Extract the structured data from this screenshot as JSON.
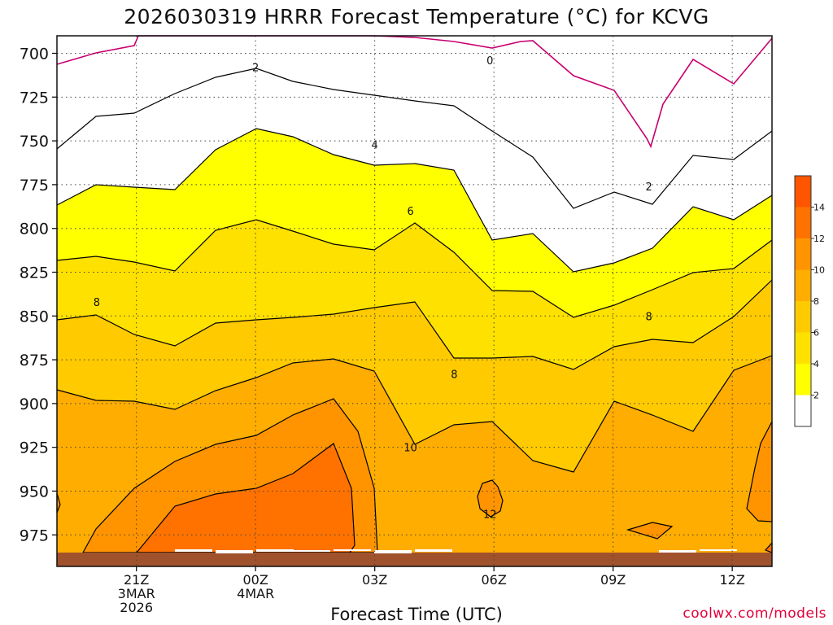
{
  "title": "2026030319 HRRR Forecast Temperature (°C) for KCVG",
  "credit": "coolwx.com/models",
  "chart_data": {
    "type": "contour",
    "title": "2026030319 HRRR Forecast Temperature (°C) for KCVG",
    "xlabel": "Forecast Time (UTC)",
    "ylabel": "",
    "x_axis": {
      "range_hours_since_start": [
        0,
        18
      ],
      "start": "2026-03-03 19Z",
      "ticks": [
        {
          "hour": 2,
          "lines": [
            "21Z",
            "3MAR",
            "2026"
          ]
        },
        {
          "hour": 5,
          "lines": [
            "00Z",
            "4MAR"
          ]
        },
        {
          "hour": 8,
          "lines": [
            "03Z"
          ]
        },
        {
          "hour": 11,
          "lines": [
            "06Z"
          ]
        },
        {
          "hour": 14,
          "lines": [
            "09Z"
          ]
        },
        {
          "hour": 17,
          "lines": [
            "12Z"
          ]
        }
      ]
    },
    "y_axis": {
      "range_hpa": [
        690,
        993
      ],
      "ticks": [
        700,
        725,
        750,
        775,
        800,
        825,
        850,
        875,
        900,
        925,
        950,
        975
      ],
      "grid": "dotted"
    },
    "fill_levels": [
      2,
      4,
      6,
      8,
      10,
      12,
      14,
      16
    ],
    "fill_colors": [
      "#ffffff",
      "#ffff00",
      "#ffe100",
      "#ffca00",
      "#ffad00",
      "#ff9400",
      "#ff7200",
      "#ff5500"
    ],
    "colorbar": {
      "ticks": [
        2,
        4,
        6,
        8,
        10,
        12,
        14
      ],
      "colors": [
        "#ffffff",
        "#ffff00",
        "#ffe100",
        "#ffca00",
        "#ffad00",
        "#ff9400",
        "#ff7200",
        "#ff5500"
      ]
    },
    "ground_color": "#a0522d",
    "freezing_line_color": "#c8006e",
    "contour_labels": [
      {
        "value": "0",
        "hour": 10.9,
        "p": 704
      },
      {
        "value": "2",
        "hour": 5.0,
        "p": 708
      },
      {
        "value": "2",
        "hour": 14.9,
        "p": 776
      },
      {
        "value": "4",
        "hour": 8.0,
        "p": 752
      },
      {
        "value": "6",
        "hour": 8.9,
        "p": 790
      },
      {
        "value": "8",
        "hour": 1.0,
        "p": 842
      },
      {
        "value": "8",
        "hour": 10.0,
        "p": 883
      },
      {
        "value": "8",
        "hour": 14.9,
        "p": 850
      },
      {
        "value": "10",
        "hour": 8.9,
        "p": 925
      },
      {
        "value": "12",
        "hour": 10.9,
        "p": 963
      }
    ]
  }
}
